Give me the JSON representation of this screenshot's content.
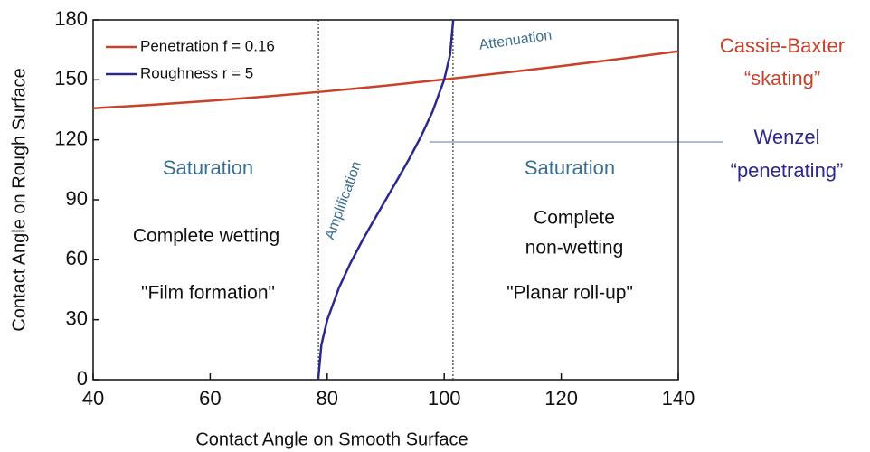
{
  "chart_data": {
    "type": "line",
    "xlabel": "Contact Angle on Smooth Surface",
    "ylabel": "Contact Angle on Rough Surface",
    "xlim": [
      40,
      140
    ],
    "ylim": [
      0,
      180
    ],
    "xticks": [
      40,
      60,
      80,
      100,
      120,
      140
    ],
    "yticks": [
      0,
      30,
      60,
      90,
      120,
      150,
      180
    ],
    "legend": "upper left",
    "series": [
      {
        "name": "Penetration f = 0.16",
        "color": "#c8412b",
        "x": [
          40,
          50,
          60,
          70,
          80,
          90,
          100,
          110,
          120,
          130,
          140
        ],
        "values": [
          135.8,
          137.5,
          139.5,
          141.8,
          144.3,
          147.1,
          150.2,
          153.5,
          156.9,
          160.5,
          164.3
        ]
      },
      {
        "name": "Roughness r = 5",
        "color": "#2b2a8c",
        "x": [
          78.46,
          79,
          80,
          82,
          84,
          86,
          88,
          90,
          92,
          94,
          96,
          98,
          100,
          101,
          101.54
        ],
        "values": [
          0,
          17.4,
          29.8,
          45.9,
          58.5,
          69.6,
          79.9,
          90,
          100.1,
          110.4,
          121.5,
          134.1,
          150.2,
          162.6,
          180
        ]
      }
    ],
    "vlines": [
      78.5,
      101.5
    ],
    "annotations": [
      "Attenuation",
      "Amplification",
      "Saturation",
      "Saturation",
      "Complete wetting",
      "\"Film formation\"",
      "Complete",
      "non-wetting",
      "\"Planar roll-up\"",
      "Cassie-Baxter",
      "“skating”",
      "Wenzel",
      "“penetrating”"
    ]
  }
}
